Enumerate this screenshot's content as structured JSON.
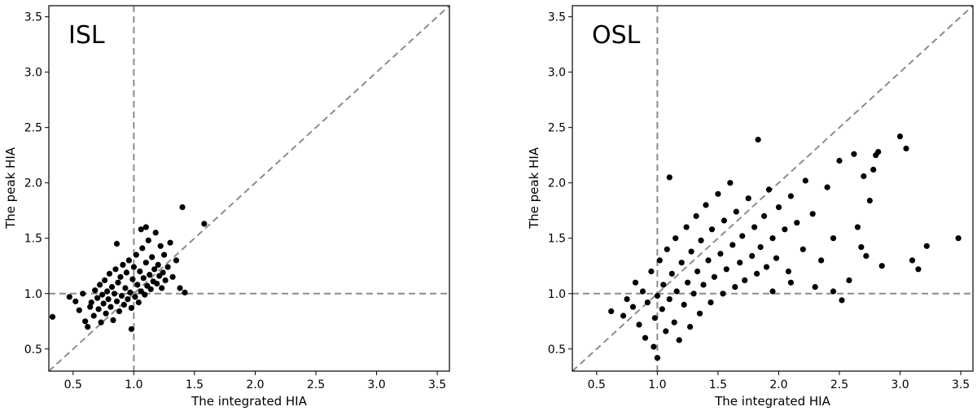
{
  "chart_data": [
    {
      "type": "scatter",
      "title": "ISL",
      "xlabel": "The integrated HIA",
      "ylabel": "The peak HIA",
      "xlim": [
        0.3,
        3.6
      ],
      "ylim": [
        0.3,
        3.6
      ],
      "xticks": [
        "0.5",
        "1.0",
        "1.5",
        "2.0",
        "2.5",
        "3.0",
        "3.5"
      ],
      "yticks": [
        "0.5",
        "1.0",
        "1.5",
        "2.0",
        "2.5",
        "3.0",
        "3.5"
      ],
      "reference_lines": {
        "vertical_x": 1.0,
        "horizontal_y": 1.0,
        "diagonal": "y = x"
      },
      "grid": false,
      "marker_color": "#000000",
      "points": [
        [
          0.33,
          0.79
        ],
        [
          0.47,
          0.97
        ],
        [
          0.52,
          0.93
        ],
        [
          0.55,
          0.85
        ],
        [
          0.58,
          1.0
        ],
        [
          0.6,
          0.75
        ],
        [
          0.62,
          0.7
        ],
        [
          0.64,
          0.88
        ],
        [
          0.65,
          0.92
        ],
        [
          0.67,
          0.8
        ],
        [
          0.68,
          1.03
        ],
        [
          0.7,
          0.96
        ],
        [
          0.71,
          0.86
        ],
        [
          0.72,
          1.08
        ],
        [
          0.73,
          0.74
        ],
        [
          0.74,
          0.99
        ],
        [
          0.75,
          0.91
        ],
        [
          0.76,
          1.12
        ],
        [
          0.77,
          0.82
        ],
        [
          0.78,
          1.02
        ],
        [
          0.79,
          0.95
        ],
        [
          0.8,
          1.18
        ],
        [
          0.81,
          0.88
        ],
        [
          0.82,
          1.06
        ],
        [
          0.83,
          0.76
        ],
        [
          0.84,
          1.0
        ],
        [
          0.85,
          1.22
        ],
        [
          0.86,
          0.93
        ],
        [
          0.87,
          1.1
        ],
        [
          0.88,
          0.84
        ],
        [
          0.89,
          1.15
        ],
        [
          0.9,
          0.98
        ],
        [
          0.91,
          1.26
        ],
        [
          0.92,
          0.9
        ],
        [
          0.93,
          1.05
        ],
        [
          0.94,
          1.19
        ],
        [
          0.95,
          0.95
        ],
        [
          0.96,
          1.3
        ],
        [
          0.97,
          1.01
        ],
        [
          0.98,
          0.87
        ],
        [
          0.99,
          1.13
        ],
        [
          1.0,
          1.24
        ],
        [
          1.01,
          0.97
        ],
        [
          1.02,
          1.35
        ],
        [
          1.03,
          1.08
        ],
        [
          1.04,
          0.92
        ],
        [
          1.05,
          1.2
        ],
        [
          1.06,
          1.02
        ],
        [
          1.07,
          1.41
        ],
        [
          1.08,
          1.14
        ],
        [
          1.09,
          0.99
        ],
        [
          1.1,
          1.28
        ],
        [
          1.11,
          1.07
        ],
        [
          1.12,
          1.48
        ],
        [
          1.13,
          1.17
        ],
        [
          1.14,
          1.04
        ],
        [
          1.15,
          1.33
        ],
        [
          1.16,
          1.11
        ],
        [
          1.17,
          1.22
        ],
        [
          1.18,
          1.55
        ],
        [
          1.19,
          1.09
        ],
        [
          1.2,
          1.26
        ],
        [
          1.21,
          1.16
        ],
        [
          1.22,
          1.43
        ],
        [
          1.23,
          1.05
        ],
        [
          1.24,
          1.19
        ],
        [
          1.25,
          1.35
        ],
        [
          1.26,
          1.12
        ],
        [
          1.28,
          1.24
        ],
        [
          1.3,
          1.46
        ],
        [
          1.32,
          1.15
        ],
        [
          1.35,
          1.3
        ],
        [
          1.38,
          1.05
        ],
        [
          1.4,
          1.78
        ],
        [
          1.42,
          1.01
        ],
        [
          1.58,
          1.63
        ],
        [
          0.98,
          0.68
        ],
        [
          1.06,
          1.58
        ],
        [
          1.1,
          1.6
        ],
        [
          0.86,
          1.45
        ]
      ]
    },
    {
      "type": "scatter",
      "title": "OSL",
      "xlabel": "The integrated HIA",
      "ylabel": "The peak HIA",
      "xlim": [
        0.3,
        3.6
      ],
      "ylim": [
        0.3,
        3.6
      ],
      "xticks": [
        "0.5",
        "1.0",
        "1.5",
        "2.0",
        "2.5",
        "3.0",
        "3.5"
      ],
      "yticks": [
        "0.5",
        "1.0",
        "1.5",
        "2.0",
        "2.5",
        "3.0",
        "3.5"
      ],
      "reference_lines": {
        "vertical_x": 1.0,
        "horizontal_y": 1.0,
        "diagonal": "y = x"
      },
      "grid": false,
      "marker_color": "#000000",
      "points": [
        [
          0.62,
          0.84
        ],
        [
          0.72,
          0.8
        ],
        [
          0.75,
          0.95
        ],
        [
          0.8,
          0.88
        ],
        [
          0.82,
          1.1
        ],
        [
          0.85,
          0.72
        ],
        [
          0.88,
          1.02
        ],
        [
          0.9,
          0.6
        ],
        [
          0.92,
          0.92
        ],
        [
          0.95,
          1.2
        ],
        [
          0.97,
          0.52
        ],
        [
          0.98,
          0.78
        ],
        [
          1.0,
          0.42
        ],
        [
          1.0,
          0.98
        ],
        [
          1.02,
          1.3
        ],
        [
          1.04,
          0.86
        ],
        [
          1.05,
          1.08
        ],
        [
          1.07,
          0.66
        ],
        [
          1.08,
          1.4
        ],
        [
          1.1,
          0.95
        ],
        [
          1.1,
          2.05
        ],
        [
          1.12,
          1.18
        ],
        [
          1.14,
          0.74
        ],
        [
          1.15,
          1.5
        ],
        [
          1.16,
          1.02
        ],
        [
          1.18,
          0.58
        ],
        [
          1.2,
          1.28
        ],
        [
          1.22,
          0.9
        ],
        [
          1.24,
          1.6
        ],
        [
          1.25,
          1.1
        ],
        [
          1.27,
          0.7
        ],
        [
          1.28,
          1.38
        ],
        [
          1.3,
          1.0
        ],
        [
          1.32,
          1.7
        ],
        [
          1.33,
          1.2
        ],
        [
          1.35,
          0.82
        ],
        [
          1.36,
          1.48
        ],
        [
          1.38,
          1.08
        ],
        [
          1.4,
          1.8
        ],
        [
          1.42,
          1.3
        ],
        [
          1.44,
          0.92
        ],
        [
          1.45,
          1.58
        ],
        [
          1.47,
          1.15
        ],
        [
          1.5,
          1.9
        ],
        [
          1.52,
          1.36
        ],
        [
          1.54,
          1.0
        ],
        [
          1.55,
          1.66
        ],
        [
          1.57,
          1.22
        ],
        [
          1.6,
          2.0
        ],
        [
          1.62,
          1.44
        ],
        [
          1.64,
          1.06
        ],
        [
          1.65,
          1.74
        ],
        [
          1.68,
          1.28
        ],
        [
          1.7,
          1.52
        ],
        [
          1.72,
          1.12
        ],
        [
          1.75,
          1.86
        ],
        [
          1.78,
          1.34
        ],
        [
          1.8,
          1.6
        ],
        [
          1.82,
          1.18
        ],
        [
          1.83,
          2.39
        ],
        [
          1.85,
          1.42
        ],
        [
          1.88,
          1.7
        ],
        [
          1.9,
          1.24
        ],
        [
          1.92,
          1.94
        ],
        [
          1.95,
          1.5
        ],
        [
          1.98,
          1.32
        ],
        [
          2.0,
          1.78
        ],
        [
          2.05,
          1.58
        ],
        [
          2.08,
          1.2
        ],
        [
          2.1,
          1.88
        ],
        [
          2.15,
          1.64
        ],
        [
          2.2,
          1.4
        ],
        [
          2.22,
          2.02
        ],
        [
          2.28,
          1.72
        ],
        [
          2.35,
          1.3
        ],
        [
          2.4,
          1.96
        ],
        [
          2.45,
          1.5
        ],
        [
          2.5,
          2.2
        ],
        [
          2.52,
          0.94
        ],
        [
          2.58,
          1.12
        ],
        [
          2.62,
          2.26
        ],
        [
          2.65,
          1.6
        ],
        [
          2.68,
          1.42
        ],
        [
          2.7,
          2.06
        ],
        [
          2.72,
          1.34
        ],
        [
          2.75,
          1.84
        ],
        [
          2.78,
          2.12
        ],
        [
          2.8,
          2.25
        ],
        [
          2.82,
          2.28
        ],
        [
          2.85,
          1.25
        ],
        [
          3.0,
          2.42
        ],
        [
          3.05,
          2.31
        ],
        [
          3.1,
          1.3
        ],
        [
          3.15,
          1.22
        ],
        [
          3.22,
          1.43
        ],
        [
          3.48,
          1.5
        ],
        [
          2.45,
          1.02
        ],
        [
          2.3,
          1.06
        ],
        [
          2.1,
          1.1
        ],
        [
          1.95,
          1.02
        ]
      ]
    }
  ]
}
